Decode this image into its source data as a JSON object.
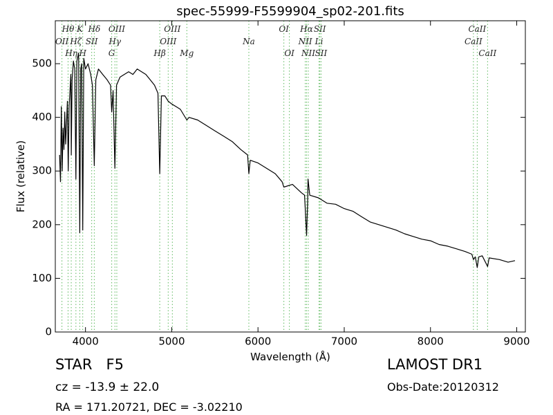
{
  "chart_data": {
    "type": "line",
    "title": "spec-55999-F5599904_sp02-201.fits",
    "xlabel": "Wavelength (Å)",
    "ylabel": "Flux (relative)",
    "xlim": [
      3650,
      9100
    ],
    "ylim": [
      0,
      580
    ],
    "xticks": [
      4000,
      5000,
      6000,
      7000,
      8000,
      9000
    ],
    "yticks": [
      0,
      100,
      200,
      300,
      400,
      500
    ],
    "color": "#000000",
    "line_marker_color": "#5cb85c",
    "x": [
      3700,
      3710,
      3720,
      3730,
      3740,
      3750,
      3760,
      3770,
      3790,
      3800,
      3810,
      3830,
      3835,
      3845,
      3860,
      3875,
      3889,
      3900,
      3920,
      3934,
      3945,
      3955,
      3968,
      3980,
      4000,
      4030,
      4060,
      4080,
      4102,
      4120,
      4150,
      4200,
      4250,
      4290,
      4304,
      4320,
      4341,
      4360,
      4400,
      4450,
      4500,
      4550,
      4600,
      4650,
      4700,
      4750,
      4800,
      4840,
      4861,
      4880,
      4920,
      4960,
      5000,
      5050,
      5100,
      5175,
      5200,
      5300,
      5400,
      5500,
      5600,
      5700,
      5800,
      5880,
      5894,
      5910,
      6000,
      6100,
      6200,
      6280,
      6300,
      6400,
      6500,
      6540,
      6563,
      6575,
      6580,
      6600,
      6700,
      6800,
      6900,
      7000,
      7100,
      7200,
      7300,
      7400,
      7500,
      7600,
      7700,
      7800,
      7900,
      8000,
      8100,
      8200,
      8300,
      8400,
      8480,
      8498,
      8520,
      8542,
      8560,
      8600,
      8662,
      8680,
      8800,
      8900,
      8980
    ],
    "values": [
      330,
      280,
      420,
      300,
      380,
      340,
      410,
      350,
      430,
      300,
      420,
      480,
      330,
      470,
      505,
      490,
      285,
      505,
      520,
      185,
      490,
      500,
      190,
      510,
      490,
      500,
      480,
      460,
      310,
      470,
      490,
      480,
      470,
      460,
      410,
      450,
      305,
      460,
      475,
      480,
      485,
      480,
      490,
      485,
      480,
      470,
      460,
      445,
      295,
      440,
      440,
      430,
      425,
      420,
      415,
      395,
      400,
      395,
      385,
      375,
      365,
      355,
      340,
      330,
      295,
      320,
      315,
      305,
      295,
      280,
      270,
      275,
      260,
      255,
      180,
      240,
      285,
      255,
      250,
      240,
      238,
      230,
      225,
      215,
      205,
      200,
      195,
      190,
      183,
      178,
      173,
      170,
      163,
      160,
      155,
      150,
      145,
      135,
      140,
      120,
      140,
      142,
      122,
      138,
      135,
      130,
      133
    ],
    "lines": [
      {
        "label": "OII",
        "x": 3727
      },
      {
        "label": "Hθ",
        "x": 3798
      },
      {
        "label": "Hη",
        "x": 3835
      },
      {
        "label": "Hζ",
        "x": 3889
      },
      {
        "label": "K",
        "x": 3934
      },
      {
        "label": "H",
        "x": 3968
      },
      {
        "label": "SII",
        "x": 4072
      },
      {
        "label": "Hδ",
        "x": 4102
      },
      {
        "label": "G",
        "x": 4304
      },
      {
        "label": "Hγ",
        "x": 4341
      },
      {
        "label": "OIII",
        "x": 4363
      },
      {
        "label": "Hβ",
        "x": 4861
      },
      {
        "label": "OIII",
        "x": 4959
      },
      {
        "label": "OIII",
        "x": 5007
      },
      {
        "label": "Mg",
        "x": 5175
      },
      {
        "label": "Na",
        "x": 5894
      },
      {
        "label": "OI",
        "x": 6300
      },
      {
        "label": "OI",
        "x": 6364
      },
      {
        "label": "NII",
        "x": 6548
      },
      {
        "label": "Hα",
        "x": 6563
      },
      {
        "label": "NII",
        "x": 6583
      },
      {
        "label": "Li",
        "x": 6708
      },
      {
        "label": "SII",
        "x": 6717
      },
      {
        "label": "SII",
        "x": 6731
      },
      {
        "label": "CaII",
        "x": 8498
      },
      {
        "label": "CaII",
        "x": 8542
      },
      {
        "label": "CaII",
        "x": 8662
      }
    ]
  },
  "footer": {
    "object": "STAR   F5",
    "survey": "LAMOST DR1",
    "cz": "cz = -13.9 ± 22.0",
    "obs_date": "Obs-Date:20120312",
    "coords": "RA = 171.20721, DEC = -3.02210"
  }
}
